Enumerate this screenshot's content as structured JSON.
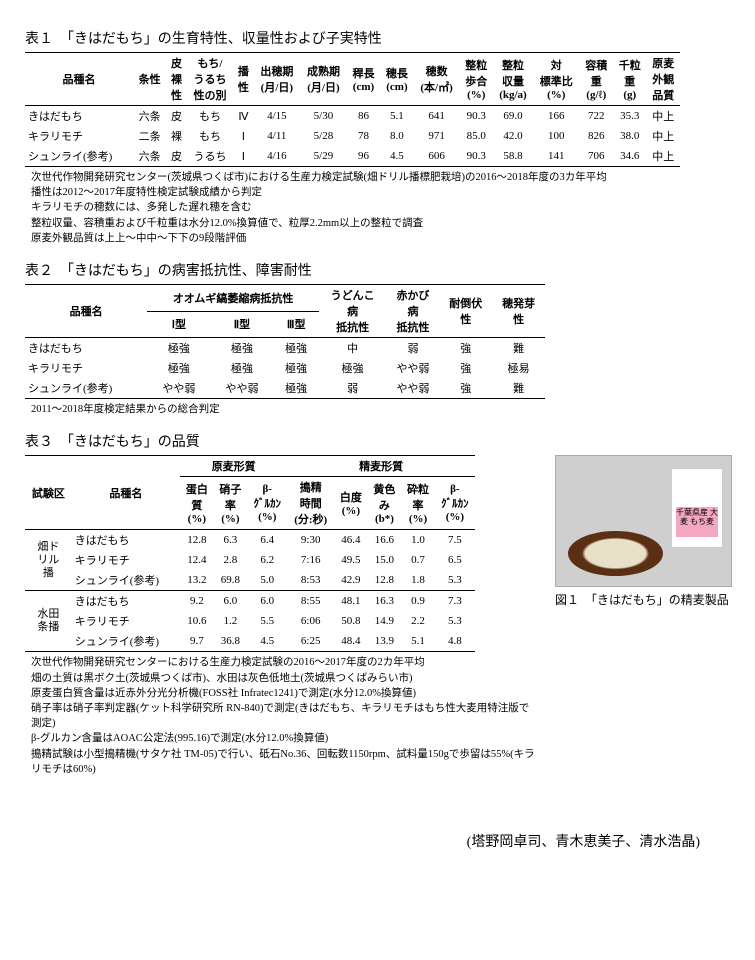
{
  "table1": {
    "title": "表１　「きはだもち」の生育特性、収量性および子実特性",
    "headers": [
      "品種名",
      "条性",
      "皮裸性",
      "もち/うるち性の別",
      "播性",
      "出穂期(月/日)",
      "成熟期(月/日)",
      "稈長(cm)",
      "穂長(cm)",
      "穂数(本/㎡)",
      "整粒歩合(%)",
      "整粒収量(kg/a)",
      "対標準比(%)",
      "容積重(g/ℓ)",
      "千粒重(g)",
      "原麦外観品質"
    ],
    "rows": [
      [
        "きはだもち",
        "六条",
        "皮",
        "もち",
        "Ⅳ",
        "4/15",
        "5/30",
        "86",
        "5.1",
        "641",
        "90.3",
        "69.0",
        "166",
        "722",
        "35.3",
        "中上"
      ],
      [
        "キラリモチ",
        "二条",
        "裸",
        "もち",
        "Ⅰ",
        "4/11",
        "5/28",
        "78",
        "8.0",
        "971",
        "85.0",
        "42.0",
        "100",
        "826",
        "38.0",
        "中上"
      ],
      [
        "シュンライ(参考)",
        "六条",
        "皮",
        "うるち",
        "Ⅰ",
        "4/16",
        "5/29",
        "96",
        "4.5",
        "606",
        "90.3",
        "58.8",
        "141",
        "706",
        "34.6",
        "中上"
      ]
    ],
    "notes": [
      "次世代作物開発研究センター(茨城県つくば市)における生産力検定試験(畑ドリル播標肥栽培)の2016～2018年度の3カ年平均",
      "播性は2012～2017年度特性検定試験成績から判定",
      "キラリモチの穂数には、多発した遅れ穂を含む",
      "整粒収量、容積重および千粒重は水分12.0%換算値で、粒厚2.2mm以上の整粒で調査",
      "原麦外観品質は上上～中中～下下の9段階評価"
    ]
  },
  "table2": {
    "title": "表２　「きはだもち」の病害抵抗性、障害耐性",
    "group_header": "オオムギ縞萎縮病抵抗性",
    "headers_top": [
      "品種名",
      "Ⅰ型",
      "Ⅱ型",
      "Ⅲ型",
      "うどんこ病抵抗性",
      "赤かび病抵抗性",
      "耐倒伏性",
      "穂発芽性"
    ],
    "rows": [
      [
        "きはだもち",
        "極強",
        "極強",
        "極強",
        "中",
        "弱",
        "強",
        "難"
      ],
      [
        "キラリモチ",
        "極強",
        "極強",
        "極強",
        "極強",
        "やや弱",
        "強",
        "極易"
      ],
      [
        "シュンライ(参考)",
        "やや弱",
        "やや弱",
        "極強",
        "弱",
        "やや弱",
        "強",
        "難"
      ]
    ],
    "notes": [
      "2011～2018年度検定結果からの総合判定"
    ]
  },
  "table3": {
    "title": "表３　「きはだもち」の品質",
    "group1": "原麦形質",
    "group2": "精麦形質",
    "sub_headers": [
      "試験区",
      "品種名",
      "蛋白質(%)",
      "硝子率(%)",
      "β-グルカン(%)",
      "搗精時間(分:秒)",
      "白度(%)",
      "黄色み(b*)",
      "砕粒率(%)",
      "β-グルカン(%)"
    ],
    "block1_label": "畑ドリル播",
    "block1_rows": [
      [
        "きはだもち",
        "12.8",
        "6.3",
        "6.4",
        "9:30",
        "46.4",
        "16.6",
        "1.0",
        "7.5"
      ],
      [
        "キラリモチ",
        "12.4",
        "2.8",
        "6.2",
        "7:16",
        "49.5",
        "15.0",
        "0.7",
        "6.5"
      ],
      [
        "シュンライ(参考)",
        "13.2",
        "69.8",
        "5.0",
        "8:53",
        "42.9",
        "12.8",
        "1.8",
        "5.3"
      ]
    ],
    "block2_label": "水田条播",
    "block2_rows": [
      [
        "きはだもち",
        "9.2",
        "6.0",
        "6.0",
        "8:55",
        "48.1",
        "16.3",
        "0.9",
        "7.3"
      ],
      [
        "キラリモチ",
        "10.6",
        "1.2",
        "5.5",
        "6:06",
        "50.8",
        "14.9",
        "2.2",
        "5.3"
      ],
      [
        "シュンライ(参考)",
        "9.7",
        "36.8",
        "4.5",
        "6:25",
        "48.4",
        "13.9",
        "5.1",
        "4.8"
      ]
    ],
    "notes": [
      "次世代作物開発研究センターにおける生産力検定試験の2016～2017年度の2カ年平均",
      "畑の土質は黒ボク土(茨城県つくば市)、水田は灰色低地土(茨城県つくばみらい市)",
      "原麦蛋白質含量は近赤外分光分析機(FOSS社 Infratec1241)で測定(水分12.0%換算値)",
      "硝子率は硝子率判定器(ケット科学研究所 RN-840)で測定(きはだもち、キラリモチはもち性大麦用特注版で測定)",
      "β-グルカン含量はAOAC公定法(995.16)で測定(水分12.0%換算値)",
      "搗精試験は小型搗精機(サタケ社 TM-05)で行い、砥石No.36、回転数1150rpm、試料量150gで歩留は55%(キラリモチは60%)"
    ]
  },
  "figure": {
    "caption": "図１　「きはだもち」の精麦製品",
    "bag_text": "千葉県産 大麦\nもち麦"
  },
  "authors": "(塔野岡卓司、青木恵美子、清水浩晶)"
}
